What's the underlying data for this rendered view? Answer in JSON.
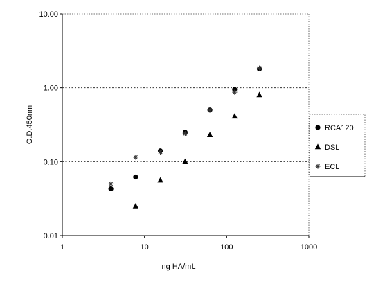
{
  "chart_data": {
    "type": "scatter",
    "title": "",
    "xlabel": "ng HA/mL",
    "ylabel": "O.D.450nm",
    "xscale": "log",
    "yscale": "log",
    "xlim": [
      1,
      1000
    ],
    "ylim": [
      0.01,
      10
    ],
    "x_ticks": [
      "1",
      "10",
      "100",
      "1000"
    ],
    "y_ticks": [
      "0.01",
      "0.10",
      "1.00",
      "10.00"
    ],
    "grid": "dotted horizontal lines at 0.10 and 1.00",
    "legend_position": "right",
    "series": [
      {
        "name": "RCA120",
        "marker": "circle",
        "x": [
          3.9,
          7.8,
          15.6,
          31.25,
          62.5,
          125,
          250
        ],
        "y": [
          0.043,
          0.062,
          0.14,
          0.25,
          0.5,
          0.95,
          1.8
        ]
      },
      {
        "name": "DSL",
        "marker": "triangle",
        "x": [
          7.8,
          15.6,
          31.25,
          62.5,
          125,
          250
        ],
        "y": [
          0.025,
          0.056,
          0.1,
          0.23,
          0.41,
          0.8
        ]
      },
      {
        "name": "ECL",
        "marker": "asterisk",
        "x": [
          3.9,
          7.8,
          15.6,
          31.25,
          62.5,
          125,
          250
        ],
        "y": [
          0.05,
          0.115,
          0.135,
          0.24,
          0.5,
          0.87,
          1.85
        ]
      }
    ]
  }
}
